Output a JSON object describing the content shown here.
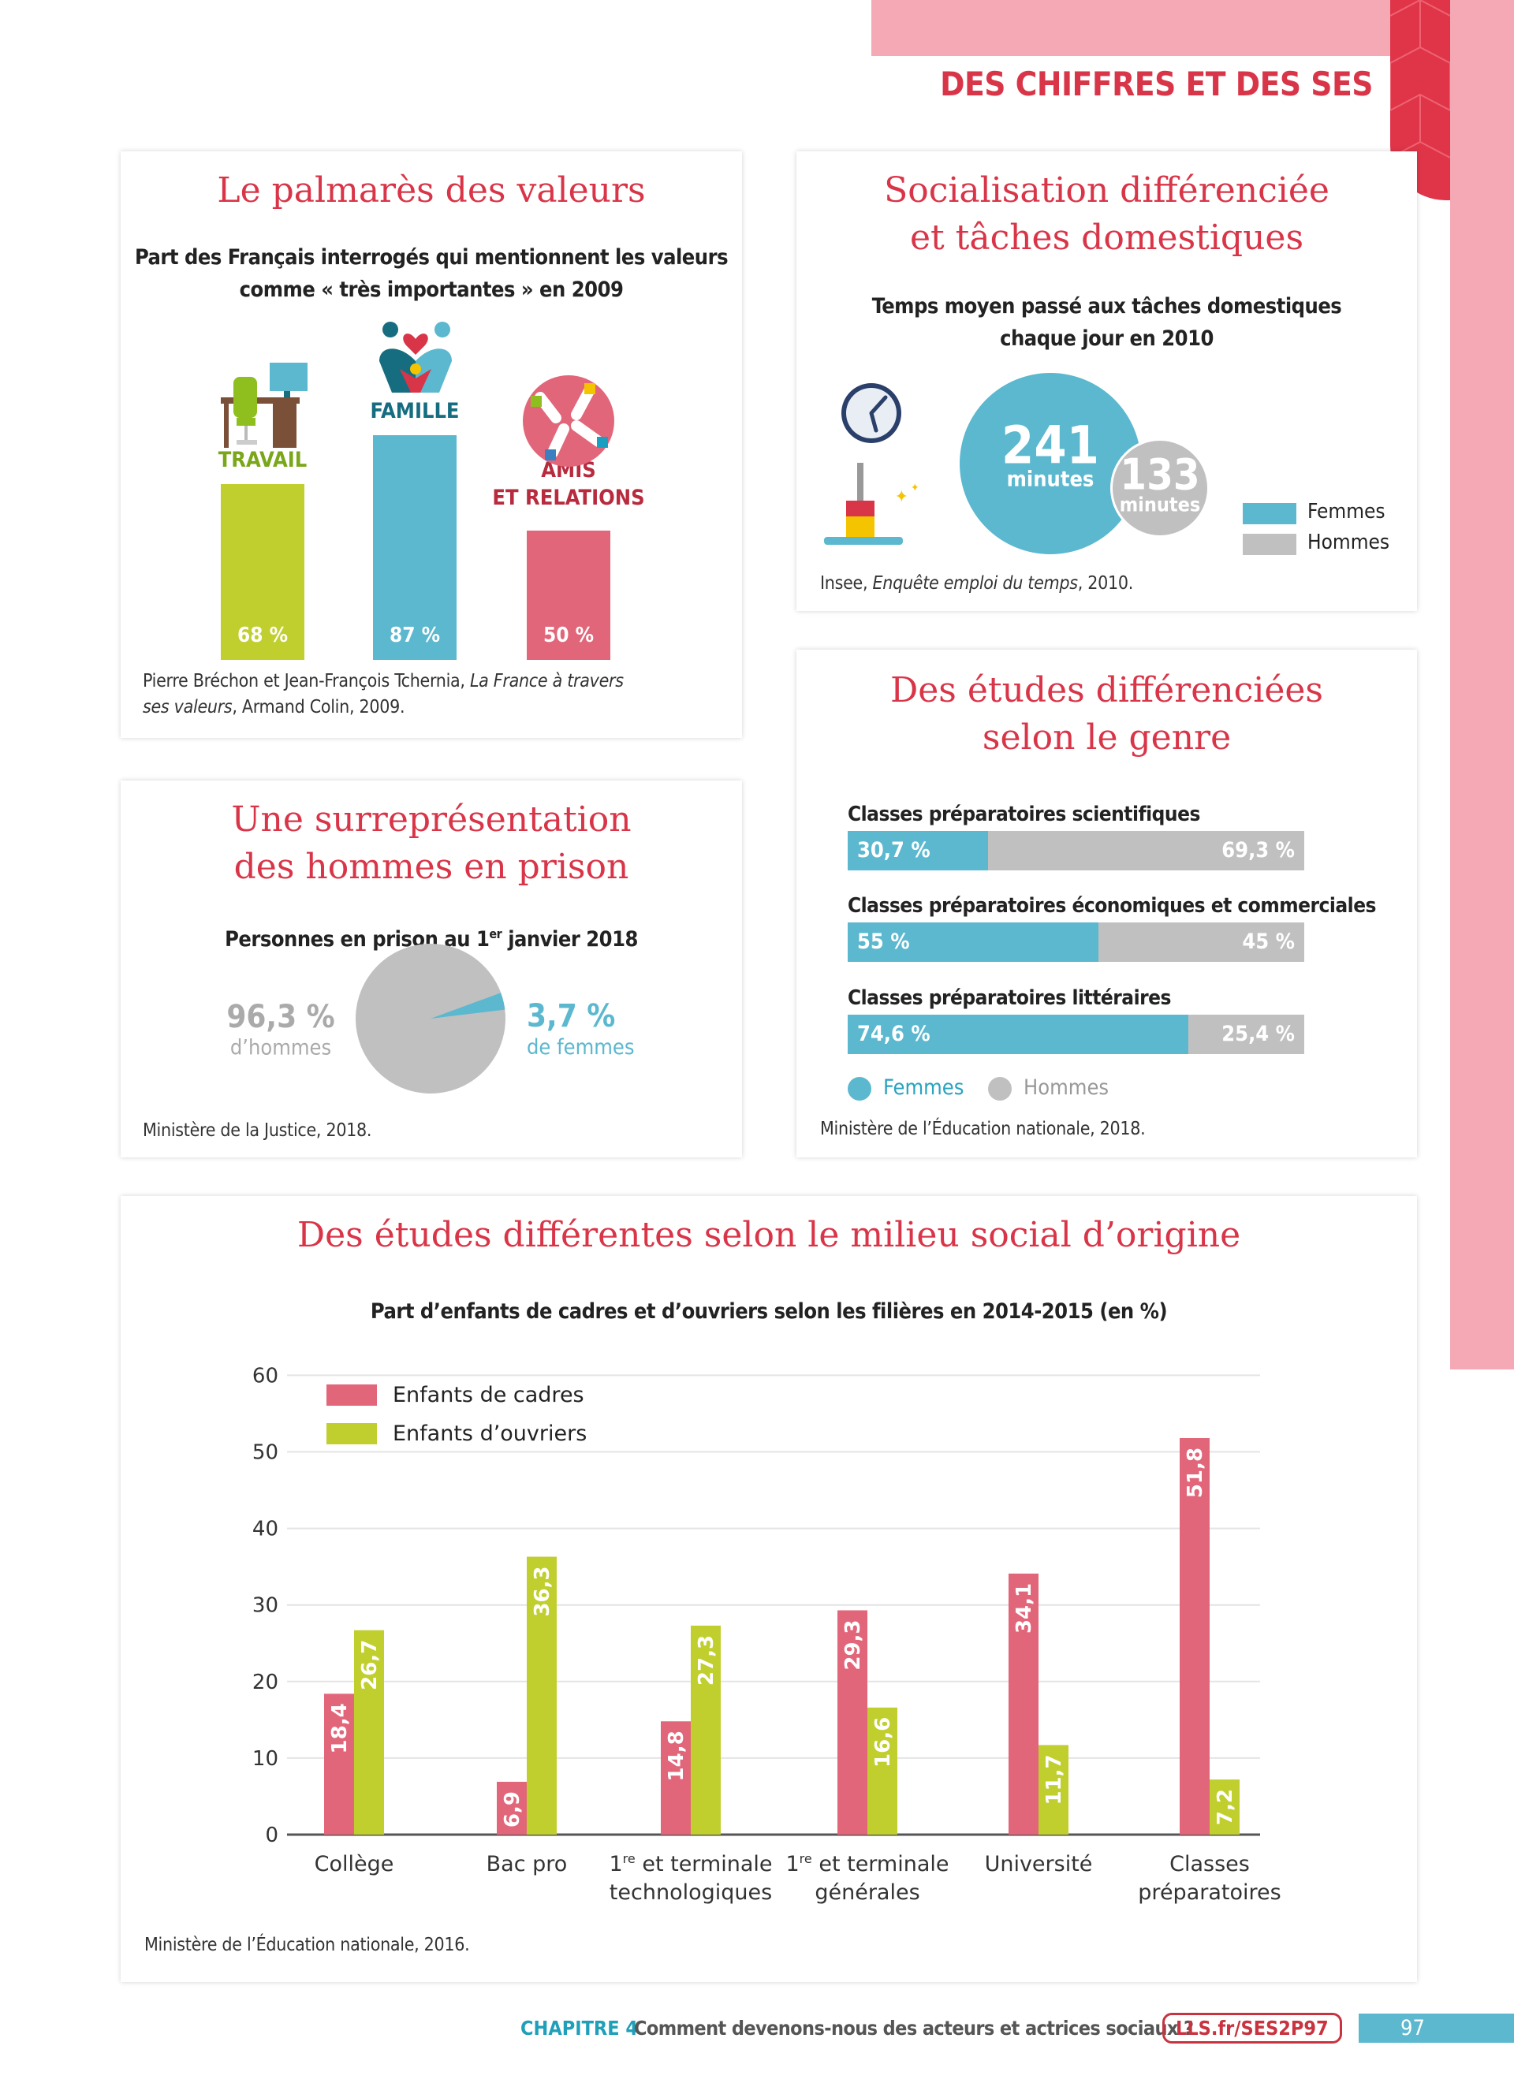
{
  "header": {
    "title": "DES CHIFFRES ET DES SES"
  },
  "colors": {
    "red": "#d93548",
    "pink": "#e2667a",
    "green": "#c0cf2e",
    "blue": "#5bb8cf",
    "grey": "#c0c0c0",
    "strip": "#f4a9b5"
  },
  "card_valeurs": {
    "title": "Le palmarès des valeurs",
    "subtitle_1": "Part des Français interrogés qui mentionnent les valeurs",
    "subtitle_2": "comme « très importantes » en 2009",
    "bars": [
      {
        "label": "TRAVAIL",
        "value": 68,
        "value_label": "68 %",
        "icon": "desk-chair-icon"
      },
      {
        "label": "FAMILLE",
        "value": 87,
        "value_label": "87 %",
        "icon": "family-heart-icon"
      },
      {
        "label_1": "AMIS",
        "label_2": "ET RELATIONS",
        "value": 50,
        "value_label": "50 %",
        "icon": "hands-circle-icon"
      }
    ],
    "source_1": "Pierre Bréchon et Jean-François Tchernia, ",
    "source_italic": "La France à travers",
    "source_2_italic": "ses valeurs",
    ", source_2": "",
    "source_end": ", Armand Colin, 2009."
  },
  "card_taches": {
    "title_1": "Socialisation différenciée",
    "title_2": "et tâches domestiques",
    "subtitle_1": "Temps moyen passé aux tâches domestiques",
    "subtitle_2": "chaque jour en 2010",
    "femmes": {
      "value": "241",
      "unit": "minutes"
    },
    "hommes": {
      "value": "133",
      "unit": "minutes"
    },
    "legend": [
      "Femmes",
      "Hommes"
    ],
    "source_1": "Insee, ",
    "source_italic": "Enquête emploi du temps",
    "source_end": ", 2010."
  },
  "card_prison": {
    "title_1": "Une surreprésentation",
    "title_2": "des hommes en prison",
    "subtitle_pre": "Personnes en prison au 1",
    "subtitle_sup": "er",
    "subtitle_post": " janvier 2018",
    "men": {
      "value": 96.3,
      "label": "96,3 %",
      "caption": "d’hommes"
    },
    "women": {
      "value": 3.7,
      "label": "3,7 %",
      "caption": "de femmes"
    },
    "source": "Ministère de la Justice, 2018."
  },
  "card_etudes_genre": {
    "title_1": "Des études différenciées",
    "title_2": "selon le genre",
    "rows": [
      {
        "label": "Classes préparatoires scientifiques",
        "femmes": 30.7,
        "femmes_label": "30,7 %",
        "hommes_label": "69,3 %"
      },
      {
        "label": "Classes préparatoires économiques et commerciales",
        "femmes": 55,
        "femmes_label": "55 %",
        "hommes_label": "45 %"
      },
      {
        "label": "Classes préparatoires littéraires",
        "femmes": 74.6,
        "femmes_label": "74,6 %",
        "hommes_label": "25,4 %"
      }
    ],
    "legend": [
      "Femmes",
      "Hommes"
    ],
    "source": "Ministère de l’Éducation nationale, 2018."
  },
  "chart_data": {
    "type": "bar",
    "title": "Des études différentes selon le milieu social d’origine",
    "subtitle": "Part d’enfants de cadres et d’ouvriers selon les filières en 2014-2015 (en %)",
    "categories": [
      "Collège",
      "Bac pro",
      "1re et terminale technologiques",
      "1re et terminale générales",
      "Université",
      "Classes préparatoires"
    ],
    "category_lines": [
      [
        "Collège"
      ],
      [
        "Bac pro"
      ],
      [
        "1|re| et terminale",
        "technologiques"
      ],
      [
        "1|re| et terminale",
        "générales"
      ],
      [
        "Université"
      ],
      [
        "Classes",
        "préparatoires"
      ]
    ],
    "series": [
      {
        "name": "Enfants de cadres",
        "color": "#e2667a",
        "values": [
          18.4,
          6.9,
          14.8,
          29.3,
          34.1,
          51.8
        ],
        "labels": [
          "18,4",
          "6,9",
          "14,8",
          "29,3",
          "34,1",
          "51,8"
        ]
      },
      {
        "name": "Enfants d’ouvriers",
        "color": "#c0cf2e",
        "values": [
          26.7,
          36.3,
          27.3,
          16.6,
          11.7,
          7.2
        ],
        "labels": [
          "26,7",
          "36,3",
          "27,3",
          "16,6",
          "11,7",
          "7,2"
        ]
      }
    ],
    "ylim": [
      0,
      60
    ],
    "yticks": [
      "0",
      "10",
      "20",
      "30",
      "40",
      "50",
      "60"
    ],
    "grid": true,
    "legend": "top-left",
    "source": "Ministère de l’Éducation nationale, 2016."
  },
  "footer": {
    "chapter": "CHAPITRE 4",
    "title": "Comment devenons-nous des acteurs et actrices sociaux ?",
    "link": "LLS.fr/SES2P97",
    "page": "97"
  }
}
